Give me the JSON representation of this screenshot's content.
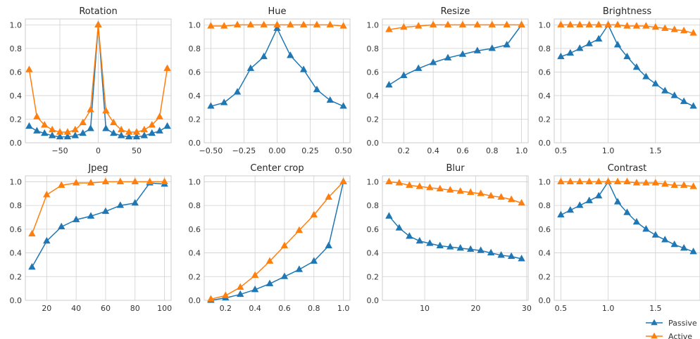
{
  "legend": {
    "placement": "bottom-right",
    "entries": [
      {
        "name": "Passive",
        "color": "#1f77b4",
        "marker": "triangle"
      },
      {
        "name": "Active",
        "color": "#ff7f0e",
        "marker": "triangle"
      }
    ]
  },
  "chart_data": [
    {
      "type": "line",
      "title": "Rotation",
      "xlabel": "",
      "ylabel": "",
      "grid": true,
      "xlim": [
        -95,
        95
      ],
      "ylim": [
        0,
        1.05
      ],
      "xticks": [
        -50,
        0,
        50
      ],
      "xtick_labels": [
        "−50",
        "0",
        "50"
      ],
      "yticks": [
        0,
        0.2,
        0.4,
        0.6,
        0.8,
        1.0
      ],
      "ytick_labels": [
        "0.0",
        "0.2",
        "0.4",
        "0.6",
        "0.8",
        "1.0"
      ],
      "x": [
        -90,
        -80,
        -70,
        -60,
        -50,
        -40,
        -30,
        -20,
        -10,
        0,
        10,
        20,
        30,
        40,
        50,
        60,
        70,
        80,
        90
      ],
      "series": [
        {
          "name": "Passive",
          "values": [
            0.14,
            0.1,
            0.08,
            0.06,
            0.05,
            0.05,
            0.06,
            0.08,
            0.12,
            1.0,
            0.12,
            0.08,
            0.06,
            0.05,
            0.05,
            0.06,
            0.08,
            0.1,
            0.14
          ]
        },
        {
          "name": "Active",
          "values": [
            0.62,
            0.22,
            0.15,
            0.11,
            0.09,
            0.09,
            0.11,
            0.17,
            0.28,
            1.0,
            0.27,
            0.17,
            0.11,
            0.09,
            0.09,
            0.11,
            0.15,
            0.22,
            0.63
          ]
        }
      ]
    },
    {
      "type": "line",
      "title": "Hue",
      "xlabel": "",
      "ylabel": "",
      "grid": true,
      "xlim": [
        -0.55,
        0.55
      ],
      "ylim": [
        0,
        1.05
      ],
      "xticks": [
        -0.5,
        -0.25,
        0,
        0.25,
        0.5
      ],
      "xtick_labels": [
        "−0.50",
        "−0.25",
        "0.00",
        "0.25",
        "0.50"
      ],
      "yticks": [
        0,
        0.2,
        0.4,
        0.6,
        0.8,
        1.0
      ],
      "ytick_labels": [
        "0.0",
        "0.2",
        "0.4",
        "0.6",
        "0.8",
        "1.0"
      ],
      "x": [
        -0.5,
        -0.4,
        -0.3,
        -0.2,
        -0.1,
        0.0,
        0.1,
        0.2,
        0.3,
        0.4,
        0.5
      ],
      "series": [
        {
          "name": "Passive",
          "values": [
            0.31,
            0.34,
            0.43,
            0.63,
            0.73,
            0.97,
            0.74,
            0.62,
            0.45,
            0.36,
            0.31
          ]
        },
        {
          "name": "Active",
          "values": [
            0.99,
            0.99,
            1.0,
            1.0,
            1.0,
            1.0,
            1.0,
            1.0,
            1.0,
            1.0,
            0.99
          ]
        }
      ]
    },
    {
      "type": "line",
      "title": "Resize",
      "xlabel": "",
      "ylabel": "",
      "grid": true,
      "xlim": [
        0.055,
        1.045
      ],
      "ylim": [
        0,
        1.05
      ],
      "xticks": [
        0.2,
        0.4,
        0.6,
        0.8,
        1.0
      ],
      "xtick_labels": [
        "0.2",
        "0.4",
        "0.6",
        "0.8",
        "1.0"
      ],
      "yticks": [
        0,
        0.2,
        0.4,
        0.6,
        0.8,
        1.0
      ],
      "ytick_labels": [
        "0.0",
        "0.2",
        "0.4",
        "0.6",
        "0.8",
        "1.0"
      ],
      "x": [
        0.1,
        0.2,
        0.3,
        0.4,
        0.5,
        0.6,
        0.7,
        0.8,
        0.9,
        1.0
      ],
      "series": [
        {
          "name": "Passive",
          "values": [
            0.49,
            0.57,
            0.63,
            0.68,
            0.72,
            0.75,
            0.78,
            0.8,
            0.83,
            1.0
          ]
        },
        {
          "name": "Active",
          "values": [
            0.96,
            0.98,
            0.99,
            1.0,
            1.0,
            1.0,
            1.0,
            1.0,
            1.0,
            1.0
          ]
        }
      ]
    },
    {
      "type": "line",
      "title": "Brightness",
      "xlabel": "",
      "ylabel": "",
      "grid": true,
      "xlim": [
        0.43,
        1.97
      ],
      "ylim": [
        0,
        1.05
      ],
      "xticks": [
        0.5,
        1.0,
        1.5
      ],
      "xtick_labels": [
        "0.5",
        "1.0",
        "1.5"
      ],
      "yticks": [
        0,
        0.2,
        0.4,
        0.6,
        0.8,
        1.0
      ],
      "ytick_labels": [
        "0.0",
        "0.2",
        "0.4",
        "0.6",
        "0.8",
        "1.0"
      ],
      "x": [
        0.5,
        0.6,
        0.7,
        0.8,
        0.9,
        1.0,
        1.1,
        1.2,
        1.3,
        1.4,
        1.5,
        1.6,
        1.7,
        1.8,
        1.9
      ],
      "series": [
        {
          "name": "Passive",
          "values": [
            0.73,
            0.76,
            0.8,
            0.84,
            0.88,
            1.0,
            0.83,
            0.73,
            0.64,
            0.56,
            0.5,
            0.44,
            0.4,
            0.35,
            0.31
          ]
        },
        {
          "name": "Active",
          "values": [
            1.0,
            1.0,
            1.0,
            1.0,
            1.0,
            1.0,
            1.0,
            0.99,
            0.99,
            0.99,
            0.98,
            0.97,
            0.96,
            0.95,
            0.93
          ]
        }
      ]
    },
    {
      "type": "line",
      "title": "Jpeg",
      "xlabel": "",
      "ylabel": "",
      "grid": true,
      "xlim": [
        5.5,
        104.5
      ],
      "ylim": [
        0,
        1.05
      ],
      "xticks": [
        20,
        40,
        60,
        80,
        100
      ],
      "xtick_labels": [
        "20",
        "40",
        "60",
        "80",
        "100"
      ],
      "yticks": [
        0,
        0.2,
        0.4,
        0.6,
        0.8,
        1.0
      ],
      "ytick_labels": [
        "0.0",
        "0.2",
        "0.4",
        "0.6",
        "0.8",
        "1.0"
      ],
      "x": [
        10,
        20,
        30,
        40,
        50,
        60,
        70,
        80,
        90,
        100
      ],
      "series": [
        {
          "name": "Passive",
          "values": [
            0.28,
            0.5,
            0.62,
            0.68,
            0.71,
            0.75,
            0.8,
            0.82,
            0.99,
            0.98
          ]
        },
        {
          "name": "Active",
          "values": [
            0.56,
            0.89,
            0.97,
            0.99,
            0.99,
            1.0,
            1.0,
            1.0,
            1.0,
            1.0
          ]
        }
      ]
    },
    {
      "type": "line",
      "title": "Center crop",
      "xlabel": "",
      "ylabel": "",
      "grid": true,
      "xlim": [
        0.055,
        1.045
      ],
      "ylim": [
        0,
        1.05
      ],
      "xticks": [
        0.2,
        0.4,
        0.6,
        0.8,
        1.0
      ],
      "xtick_labels": [
        "0.2",
        "0.4",
        "0.6",
        "0.8",
        "1.0"
      ],
      "yticks": [
        0,
        0.2,
        0.4,
        0.6,
        0.8,
        1.0
      ],
      "ytick_labels": [
        "0.0",
        "0.2",
        "0.4",
        "0.6",
        "0.8",
        "1.0"
      ],
      "x": [
        0.1,
        0.2,
        0.3,
        0.4,
        0.5,
        0.6,
        0.7,
        0.8,
        0.9,
        1.0
      ],
      "series": [
        {
          "name": "Passive",
          "values": [
            0.0,
            0.02,
            0.05,
            0.09,
            0.14,
            0.2,
            0.26,
            0.33,
            0.46,
            1.0
          ]
        },
        {
          "name": "Active",
          "values": [
            0.01,
            0.04,
            0.11,
            0.21,
            0.33,
            0.46,
            0.59,
            0.72,
            0.87,
            1.0
          ]
        }
      ]
    },
    {
      "type": "line",
      "title": "Blur",
      "xlabel": "",
      "ylabel": "",
      "grid": true,
      "xlim": [
        1.7,
        30.3
      ],
      "ylim": [
        0,
        1.05
      ],
      "xticks": [
        10,
        20,
        30
      ],
      "xtick_labels": [
        "10",
        "20",
        "30"
      ],
      "yticks": [
        0,
        0.2,
        0.4,
        0.6,
        0.8,
        1.0
      ],
      "ytick_labels": [
        "0.0",
        "0.2",
        "0.4",
        "0.6",
        "0.8",
        "1.0"
      ],
      "x": [
        3,
        5,
        7,
        9,
        11,
        13,
        15,
        17,
        19,
        21,
        23,
        25,
        27,
        29
      ],
      "series": [
        {
          "name": "Passive",
          "values": [
            0.71,
            0.61,
            0.54,
            0.5,
            0.48,
            0.46,
            0.45,
            0.44,
            0.43,
            0.42,
            0.4,
            0.38,
            0.37,
            0.35
          ]
        },
        {
          "name": "Active",
          "values": [
            1.0,
            0.99,
            0.97,
            0.96,
            0.95,
            0.94,
            0.93,
            0.92,
            0.91,
            0.9,
            0.88,
            0.87,
            0.85,
            0.82
          ]
        }
      ]
    },
    {
      "type": "line",
      "title": "Contrast",
      "xlabel": "",
      "ylabel": "",
      "grid": true,
      "xlim": [
        0.43,
        1.97
      ],
      "ylim": [
        0,
        1.05
      ],
      "xticks": [
        0.5,
        1.0,
        1.5
      ],
      "xtick_labels": [
        "0.5",
        "1.0",
        "1.5"
      ],
      "yticks": [
        0,
        0.2,
        0.4,
        0.6,
        0.8,
        1.0
      ],
      "ytick_labels": [
        "0.0",
        "0.2",
        "0.4",
        "0.6",
        "0.8",
        "1.0"
      ],
      "x": [
        0.5,
        0.6,
        0.7,
        0.8,
        0.9,
        1.0,
        1.1,
        1.2,
        1.3,
        1.4,
        1.5,
        1.6,
        1.7,
        1.8,
        1.9
      ],
      "series": [
        {
          "name": "Passive",
          "values": [
            0.72,
            0.76,
            0.8,
            0.84,
            0.88,
            1.0,
            0.83,
            0.74,
            0.66,
            0.6,
            0.55,
            0.51,
            0.47,
            0.44,
            0.41
          ]
        },
        {
          "name": "Active",
          "values": [
            1.0,
            1.0,
            1.0,
            1.0,
            1.0,
            1.0,
            1.0,
            1.0,
            0.99,
            0.99,
            0.99,
            0.98,
            0.97,
            0.97,
            0.96
          ]
        }
      ]
    }
  ]
}
